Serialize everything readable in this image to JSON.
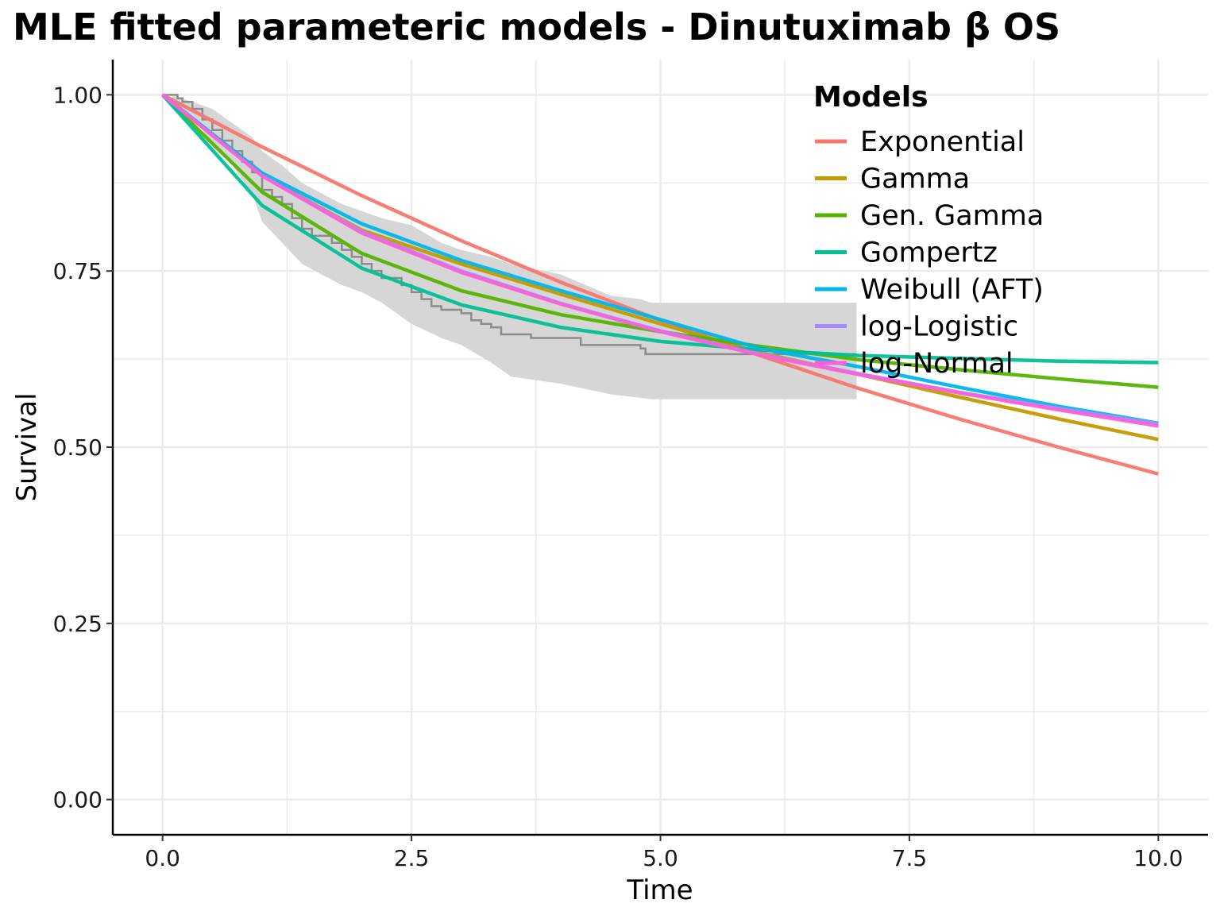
{
  "chart_data": {
    "type": "line",
    "title": "MLE fitted parameteric models - Dinutuximab β OS",
    "xlabel": "Time",
    "ylabel": "Survival",
    "xlim": [
      -0.5,
      10.5
    ],
    "ylim": [
      -0.05,
      1.05
    ],
    "x_ticks": [
      0,
      2.5,
      5,
      7.5,
      10
    ],
    "x_tick_labels": [
      "0.0",
      "2.5",
      "5.0",
      "7.5",
      "10.0"
    ],
    "y_ticks": [
      0,
      0.25,
      0.5,
      0.75,
      1
    ],
    "y_tick_labels": [
      "0.00",
      "0.25",
      "0.50",
      "0.75",
      "1.00"
    ],
    "grid": true,
    "legend": {
      "title": "Models",
      "position": "top-right"
    },
    "series": [
      {
        "name": "Exponential",
        "color": "#F8766D",
        "x": [
          0,
          1,
          2,
          3,
          4,
          5,
          6,
          7,
          8,
          9,
          10
        ],
        "y": [
          1.0,
          0.926,
          0.857,
          0.793,
          0.734,
          0.68,
          0.63,
          0.583,
          0.54,
          0.5,
          0.462
        ]
      },
      {
        "name": "Gamma",
        "color": "#C49A00",
        "x": [
          0,
          1,
          2,
          3,
          4,
          5,
          6,
          7,
          8,
          9,
          10
        ],
        "y": [
          1.0,
          0.885,
          0.808,
          0.76,
          0.717,
          0.675,
          0.634,
          0.603,
          0.571,
          0.54,
          0.511
        ]
      },
      {
        "name": "Gen. Gamma",
        "color": "#53B400",
        "x": [
          0,
          1,
          2,
          3,
          4,
          5,
          6,
          7,
          8,
          9,
          10
        ],
        "y": [
          1.0,
          0.862,
          0.775,
          0.722,
          0.688,
          0.664,
          0.643,
          0.624,
          0.61,
          0.597,
          0.585
        ]
      },
      {
        "name": "Gompertz",
        "color": "#00C094",
        "x": [
          0,
          1,
          2,
          3,
          4,
          5,
          6,
          7,
          8,
          9,
          10
        ],
        "y": [
          1.0,
          0.843,
          0.754,
          0.702,
          0.67,
          0.65,
          0.638,
          0.63,
          0.626,
          0.622,
          0.62
        ]
      },
      {
        "name": "Weibull (AFT)",
        "color": "#00B6EB",
        "x": [
          0,
          1,
          2,
          3,
          4,
          5,
          6,
          7,
          8,
          9,
          10
        ],
        "y": [
          1.0,
          0.889,
          0.817,
          0.765,
          0.722,
          0.681,
          0.64,
          0.614,
          0.585,
          0.558,
          0.534
        ]
      },
      {
        "name": "log-Logistic",
        "color": "#A58AFF",
        "x": [
          0,
          1,
          2,
          3,
          4,
          5,
          6,
          7,
          8,
          9,
          10
        ],
        "y": [
          1.0,
          0.885,
          0.806,
          0.75,
          0.704,
          0.665,
          0.632,
          0.604,
          0.578,
          0.555,
          0.533
        ]
      },
      {
        "name": "log-Normal",
        "color": "#FB61D7",
        "x": [
          0,
          1,
          2,
          3,
          4,
          5,
          6,
          7,
          8,
          9,
          10
        ],
        "y": [
          1.0,
          0.885,
          0.804,
          0.748,
          0.703,
          0.664,
          0.631,
          0.603,
          0.577,
          0.553,
          0.53
        ]
      }
    ],
    "km_curve": {
      "name": "Kaplan-Meier",
      "color": "#8c8c8c",
      "x": [
        0,
        0.15,
        0.2,
        0.3,
        0.4,
        0.5,
        0.6,
        0.7,
        0.8,
        0.9,
        1.0,
        1.1,
        1.2,
        1.3,
        1.4,
        1.5,
        1.7,
        1.8,
        1.9,
        2.0,
        2.1,
        2.2,
        2.4,
        2.5,
        2.6,
        2.7,
        2.8,
        3.0,
        3.1,
        3.2,
        3.3,
        3.4,
        3.6,
        3.7,
        4.0,
        4.2,
        4.8,
        4.85,
        6.97
      ],
      "y": [
        1.0,
        0.995,
        0.99,
        0.98,
        0.965,
        0.95,
        0.935,
        0.92,
        0.905,
        0.89,
        0.865,
        0.855,
        0.845,
        0.825,
        0.81,
        0.8,
        0.79,
        0.78,
        0.77,
        0.76,
        0.75,
        0.74,
        0.73,
        0.72,
        0.71,
        0.7,
        0.695,
        0.69,
        0.68,
        0.675,
        0.67,
        0.66,
        0.66,
        0.655,
        0.655,
        0.645,
        0.64,
        0.632,
        0.632
      ]
    },
    "km_ci": {
      "color": "#d6d6d6",
      "x": [
        0.1,
        0.3,
        0.5,
        0.7,
        0.9,
        1.0,
        1.2,
        1.4,
        1.6,
        1.8,
        2.0,
        2.2,
        2.5,
        2.8,
        3.0,
        3.3,
        3.5,
        4.0,
        4.5,
        4.8,
        4.9,
        6.97
      ],
      "upper": [
        1.0,
        0.99,
        0.98,
        0.96,
        0.94,
        0.92,
        0.9,
        0.875,
        0.86,
        0.845,
        0.835,
        0.825,
        0.815,
        0.79,
        0.78,
        0.77,
        0.76,
        0.745,
        0.715,
        0.71,
        0.705,
        0.705
      ],
      "lower": [
        0.99,
        0.97,
        0.93,
        0.9,
        0.86,
        0.82,
        0.79,
        0.76,
        0.745,
        0.73,
        0.72,
        0.705,
        0.675,
        0.655,
        0.645,
        0.62,
        0.6,
        0.59,
        0.575,
        0.57,
        0.568,
        0.568
      ]
    }
  }
}
